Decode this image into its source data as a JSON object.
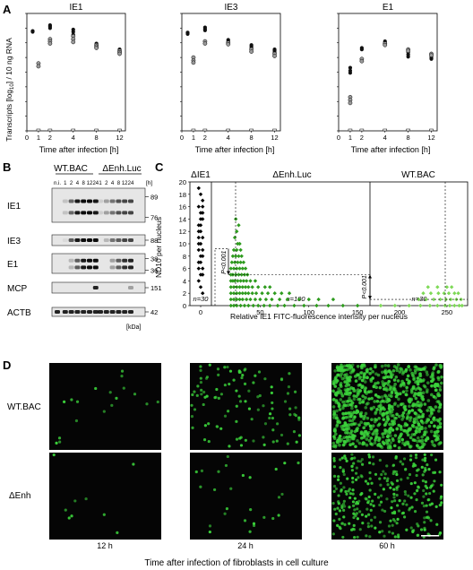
{
  "panel_letters": {
    "a": "A",
    "b": "B",
    "c": "C",
    "d": "D"
  },
  "panel_a": {
    "ylabel": "Transcripts [log",
    "ylabel_sub": "10",
    "ylabel_end": "] / 10 ng RNA",
    "xlabel": "Time after infection [h]",
    "x_ticks": [
      "0",
      "1",
      "2",
      "4",
      "8",
      "12"
    ],
    "y_ticks": [
      "0",
      "1",
      "2",
      "3",
      "4",
      "5",
      "6",
      "7",
      "8"
    ],
    "colors": {
      "dark": "#111111",
      "light": "#9a9a9a"
    }
  },
  "chart_data": [
    {
      "type": "scatter",
      "title": "IE1",
      "xlabel": "Time after infection [h]",
      "ylabel": "Transcripts [log10] / 10 ng RNA",
      "xlim": [
        0,
        13
      ],
      "ylim": [
        0,
        8
      ],
      "series": [
        {
          "values": [
            [
              0.5,
              6.75
            ],
            [
              0.5,
              6.8
            ],
            [
              2,
              7.2
            ],
            [
              2,
              7.1
            ],
            [
              2,
              7.0
            ],
            [
              4,
              6.9
            ],
            [
              4,
              6.75
            ],
            [
              4,
              6.55
            ],
            [
              8,
              5.95
            ],
            [
              8,
              5.85
            ],
            [
              8,
              5.75
            ],
            [
              12,
              5.55
            ],
            [
              12,
              5.45
            ],
            [
              12,
              5.35
            ]
          ]
        },
        {
          "values": [
            [
              1,
              4.6
            ],
            [
              1,
              4.4
            ],
            [
              2,
              6.25
            ],
            [
              2,
              6.1
            ],
            [
              2,
              5.95
            ],
            [
              4,
              6.45
            ],
            [
              4,
              6.25
            ],
            [
              4,
              6.05
            ],
            [
              8,
              5.85
            ],
            [
              8,
              5.75
            ],
            [
              8,
              5.65
            ],
            [
              12,
              5.45
            ],
            [
              12,
              5.35
            ],
            [
              12,
              5.25
            ]
          ]
        }
      ]
    },
    {
      "type": "scatter",
      "title": "IE3",
      "xlabel": "Time after infection [h]",
      "xlim": [
        0,
        13
      ],
      "ylim": [
        0,
        8
      ],
      "series": [
        {
          "values": [
            [
              0.5,
              6.6
            ],
            [
              0.5,
              6.7
            ],
            [
              2,
              7.05
            ],
            [
              2,
              6.95
            ],
            [
              2,
              6.85
            ],
            [
              4,
              6.2
            ],
            [
              4,
              6.1
            ],
            [
              4,
              6.0
            ],
            [
              8,
              5.85
            ],
            [
              8,
              5.75
            ],
            [
              8,
              5.65
            ],
            [
              12,
              5.55
            ],
            [
              12,
              5.45
            ],
            [
              12,
              5.35
            ]
          ]
        },
        {
          "values": [
            [
              1,
              5.0
            ],
            [
              1,
              4.8
            ],
            [
              1,
              4.65
            ],
            [
              2,
              6.1
            ],
            [
              2,
              5.95
            ],
            [
              4,
              6.0
            ],
            [
              4,
              5.9
            ],
            [
              8,
              5.55
            ],
            [
              8,
              5.4
            ],
            [
              12,
              5.25
            ],
            [
              12,
              5.1
            ]
          ]
        }
      ]
    },
    {
      "type": "scatter",
      "title": "E1",
      "xlabel": "Time after infection [h]",
      "xlim": [
        0,
        13
      ],
      "ylim": [
        0,
        8
      ],
      "series": [
        {
          "values": [
            [
              1,
              4.3
            ],
            [
              1,
              4.1
            ],
            [
              1,
              3.95
            ],
            [
              2,
              5.65
            ],
            [
              2,
              5.55
            ],
            [
              4,
              6.1
            ],
            [
              4,
              6.0
            ],
            [
              4,
              5.9
            ],
            [
              8,
              5.35
            ],
            [
              8,
              5.2
            ],
            [
              8,
              5.05
            ],
            [
              12,
              5.1
            ],
            [
              12,
              5.0
            ],
            [
              12,
              4.9
            ]
          ]
        },
        {
          "values": [
            [
              1,
              2.3
            ],
            [
              1,
              2.1
            ],
            [
              1,
              1.9
            ],
            [
              2,
              4.9
            ],
            [
              2,
              4.75
            ],
            [
              4,
              5.95
            ],
            [
              4,
              5.85
            ],
            [
              8,
              5.55
            ],
            [
              8,
              5.45
            ],
            [
              12,
              5.25
            ],
            [
              12,
              5.15
            ]
          ]
        }
      ]
    },
    {
      "type": "scatter",
      "ylabel": "ND10 per nucleus",
      "xlabel": "Relative IE1 FITC-fluorescence intensity per nucleus",
      "y_ticks": [
        "0",
        "2",
        "4",
        "6",
        "8",
        "10",
        "12",
        "14",
        "16",
        "18",
        "20"
      ],
      "ylim": [
        0,
        20
      ],
      "groups": [
        {
          "label": "ΔIE1",
          "n": "n=30",
          "color": "#000000",
          "x_ticks": [
            "0"
          ],
          "points": [
            [
              0,
              19
            ],
            [
              0,
              18
            ],
            [
              0,
              17
            ],
            [
              0,
              16
            ],
            [
              0,
              15
            ],
            [
              0,
              14
            ],
            [
              0,
              13
            ],
            [
              0,
              12
            ],
            [
              0,
              11
            ],
            [
              0,
              10
            ],
            [
              0,
              10
            ],
            [
              0,
              9
            ],
            [
              0,
              9
            ],
            [
              0,
              8
            ],
            [
              0,
              8
            ],
            [
              0,
              7
            ],
            [
              0,
              7
            ],
            [
              0,
              6
            ],
            [
              0,
              6
            ],
            [
              0,
              5
            ],
            [
              0,
              5
            ],
            [
              0,
              4
            ],
            [
              0,
              3
            ],
            [
              0,
              2
            ],
            [
              0,
              12
            ],
            [
              0,
              14
            ],
            [
              0,
              16
            ],
            [
              0,
              11
            ],
            [
              0,
              13
            ],
            [
              0,
              15
            ]
          ]
        },
        {
          "label": "ΔEnh.Luc",
          "n": "n=100",
          "color": "#2e9b1e",
          "x_ticks": [
            "50",
            "100",
            "150"
          ],
          "pvalue": "P<0.001",
          "points": [
            [
              25,
              14
            ],
            [
              28,
              13
            ],
            [
              26,
              12
            ],
            [
              24,
              11
            ],
            [
              27,
              10
            ],
            [
              29,
              10
            ],
            [
              23,
              9
            ],
            [
              26,
              9
            ],
            [
              30,
              9
            ],
            [
              22,
              8
            ],
            [
              25,
              8
            ],
            [
              28,
              8
            ],
            [
              31,
              8
            ],
            [
              21,
              7
            ],
            [
              24,
              7
            ],
            [
              27,
              7
            ],
            [
              30,
              7
            ],
            [
              33,
              7
            ],
            [
              20,
              6
            ],
            [
              23,
              6
            ],
            [
              26,
              6
            ],
            [
              29,
              6
            ],
            [
              32,
              6
            ],
            [
              35,
              6
            ],
            [
              20,
              5
            ],
            [
              22,
              5
            ],
            [
              25,
              5
            ],
            [
              28,
              5
            ],
            [
              31,
              5
            ],
            [
              34,
              5
            ],
            [
              37,
              5
            ],
            [
              20,
              4
            ],
            [
              22,
              4
            ],
            [
              24,
              4
            ],
            [
              27,
              4
            ],
            [
              30,
              4
            ],
            [
              33,
              4
            ],
            [
              36,
              4
            ],
            [
              40,
              4
            ],
            [
              45,
              4
            ],
            [
              20,
              3
            ],
            [
              23,
              3
            ],
            [
              26,
              3
            ],
            [
              29,
              3
            ],
            [
              32,
              3
            ],
            [
              35,
              3
            ],
            [
              38,
              3
            ],
            [
              42,
              3
            ],
            [
              48,
              3
            ],
            [
              55,
              3
            ],
            [
              60,
              3
            ],
            [
              20,
              2
            ],
            [
              23,
              2
            ],
            [
              26,
              2
            ],
            [
              29,
              2
            ],
            [
              32,
              2
            ],
            [
              35,
              2
            ],
            [
              38,
              2
            ],
            [
              42,
              2
            ],
            [
              46,
              2
            ],
            [
              52,
              2
            ],
            [
              58,
              2
            ],
            [
              65,
              2
            ],
            [
              72,
              2
            ],
            [
              80,
              2
            ],
            [
              20,
              1
            ],
            [
              23,
              1
            ],
            [
              26,
              1
            ],
            [
              29,
              1
            ],
            [
              32,
              1
            ],
            [
              36,
              1
            ],
            [
              40,
              1
            ],
            [
              45,
              1
            ],
            [
              50,
              1
            ],
            [
              56,
              1
            ],
            [
              62,
              1
            ],
            [
              70,
              1
            ],
            [
              78,
              1
            ],
            [
              90,
              1
            ],
            [
              100,
              1
            ],
            [
              110,
              1
            ],
            [
              125,
              1
            ],
            [
              20,
              0
            ],
            [
              23,
              0
            ],
            [
              26,
              0
            ],
            [
              30,
              0
            ],
            [
              34,
              0
            ],
            [
              38,
              0
            ],
            [
              43,
              0
            ],
            [
              48,
              0
            ],
            [
              54,
              0
            ],
            [
              60,
              0
            ],
            [
              68,
              0
            ],
            [
              75,
              0
            ],
            [
              85,
              0
            ],
            [
              95,
              0
            ],
            [
              108,
              0
            ],
            [
              120,
              0
            ],
            [
              135,
              0
            ],
            [
              150,
              0
            ]
          ]
        },
        {
          "label": "WT.BAC",
          "n": "n=30",
          "color": "#7ed957",
          "x_ticks": [
            "200",
            "250"
          ],
          "pvalue": "P<0.001",
          "points": [
            [
              230,
              3
            ],
            [
              240,
              3
            ],
            [
              250,
              3
            ],
            [
              255,
              3
            ],
            [
              225,
              2
            ],
            [
              233,
              2
            ],
            [
              241,
              2
            ],
            [
              247,
              2
            ],
            [
              252,
              2
            ],
            [
              258,
              2
            ],
            [
              262,
              2
            ],
            [
              220,
              1
            ],
            [
              228,
              1
            ],
            [
              236,
              1
            ],
            [
              243,
              1
            ],
            [
              249,
              1
            ],
            [
              254,
              1
            ],
            [
              260,
              1
            ],
            [
              265,
              1
            ],
            [
              180,
              0
            ],
            [
              195,
              0
            ],
            [
              210,
              0
            ],
            [
              222,
              0
            ],
            [
              232,
              0
            ],
            [
              240,
              0
            ],
            [
              248,
              0
            ],
            [
              253,
              0
            ],
            [
              258,
              0
            ],
            [
              263,
              0
            ],
            [
              266,
              0
            ]
          ]
        }
      ]
    }
  ],
  "panel_b": {
    "groups": [
      "WT.BAC",
      "ΔEnh.Luc"
    ],
    "lanes": [
      "n.i.",
      "1",
      "2",
      "4",
      "8",
      "12",
      "24",
      "1",
      "2",
      "4",
      "8",
      "12",
      "24"
    ],
    "lanes_unit": "[h]",
    "rows": [
      {
        "label": "IE1",
        "markers": [
          "89",
          "76"
        ]
      },
      {
        "label": "IE3",
        "markers": [
          "88"
        ]
      },
      {
        "label": "E1",
        "markers": [
          "38",
          "36"
        ]
      },
      {
        "label": "MCP",
        "markers": [
          "151"
        ]
      },
      {
        "label": "ACTB",
        "markers": [
          "42"
        ]
      }
    ],
    "unit": "[kDa]"
  },
  "panel_d": {
    "rows": [
      "WT.BAC",
      "ΔEnh"
    ],
    "columns": [
      "12 h",
      "24 h",
      "60 h"
    ],
    "xlabel": "Time after infection of fibroblasts in cell culture",
    "densities": [
      [
        0.02,
        0.12,
        0.95
      ],
      [
        0.01,
        0.03,
        0.35
      ]
    ],
    "color": "#3bd23b"
  }
}
